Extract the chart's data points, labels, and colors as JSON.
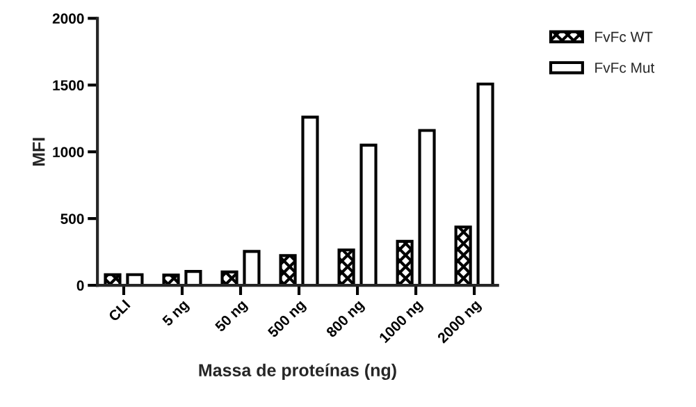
{
  "chart_data": {
    "type": "bar",
    "xlabel": "Massa de proteínas (ng)",
    "ylabel": "MFI",
    "categories": [
      "CLI",
      "5 ng",
      "50 ng",
      "500 ng",
      "800 ng",
      "1000 ng",
      "2000 ng"
    ],
    "series": [
      {
        "name": "FvFc WT",
        "color": "#000000",
        "values": [
          80,
          77,
          100,
          223,
          265,
          329,
          437
        ]
      },
      {
        "name": "FvFc Mut",
        "color": "#ffffff",
        "values": [
          80,
          104,
          254,
          1260,
          1050,
          1160,
          1508
        ]
      }
    ],
    "ylim": [
      0,
      2000
    ],
    "yticks": [
      0,
      500,
      1000,
      1500,
      2000
    ],
    "grid": false,
    "legend": "top right"
  }
}
